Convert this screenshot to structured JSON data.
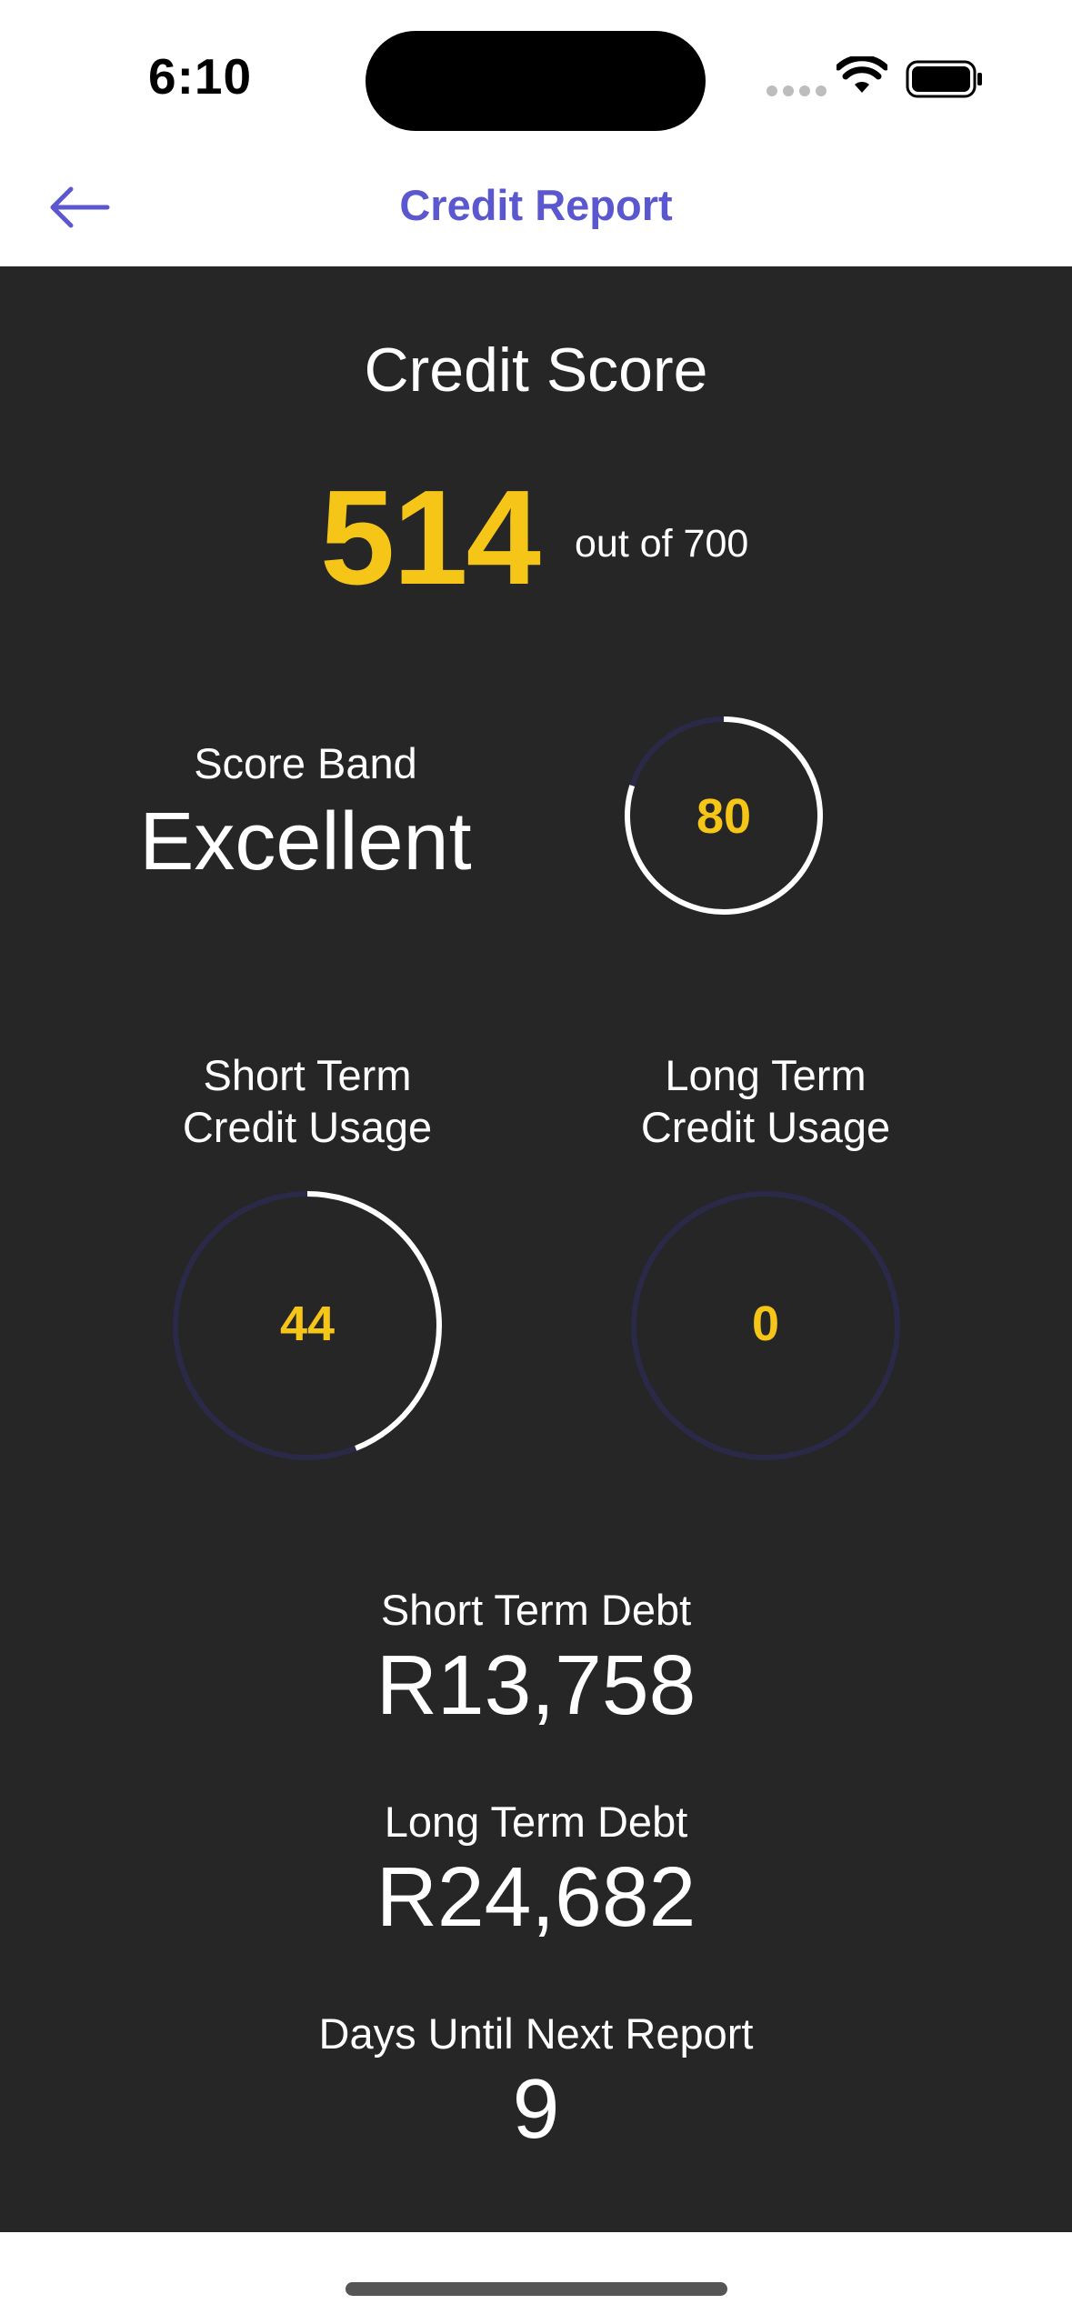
{
  "status_bar": {
    "time": "6:10"
  },
  "nav": {
    "title": "Credit Report"
  },
  "credit_score": {
    "heading": "Credit Score",
    "score": "514",
    "out_of": "out of 700"
  },
  "score_band": {
    "label": "Score Band",
    "value": "Excellent",
    "gauge_value": "80",
    "gauge_fraction": 0.8
  },
  "short_term_usage": {
    "label_line1": "Short Term",
    "label_line2": "Credit Usage",
    "value": "44",
    "fraction": 0.44
  },
  "long_term_usage": {
    "label_line1": "Long Term",
    "label_line2": "Credit Usage",
    "value": "0",
    "fraction": 0
  },
  "short_term_debt": {
    "label": "Short Term Debt",
    "value": "R13,758"
  },
  "long_term_debt": {
    "label": "Long Term Debt",
    "value": "R24,682"
  },
  "next_report": {
    "label": "Days Until Next Report",
    "value": "9"
  },
  "colors": {
    "accent": "#5b57cf",
    "score": "#f5c518",
    "panel": "#262626",
    "gauge_track": "#2b2948",
    "gauge_progress": "#ffffff"
  }
}
